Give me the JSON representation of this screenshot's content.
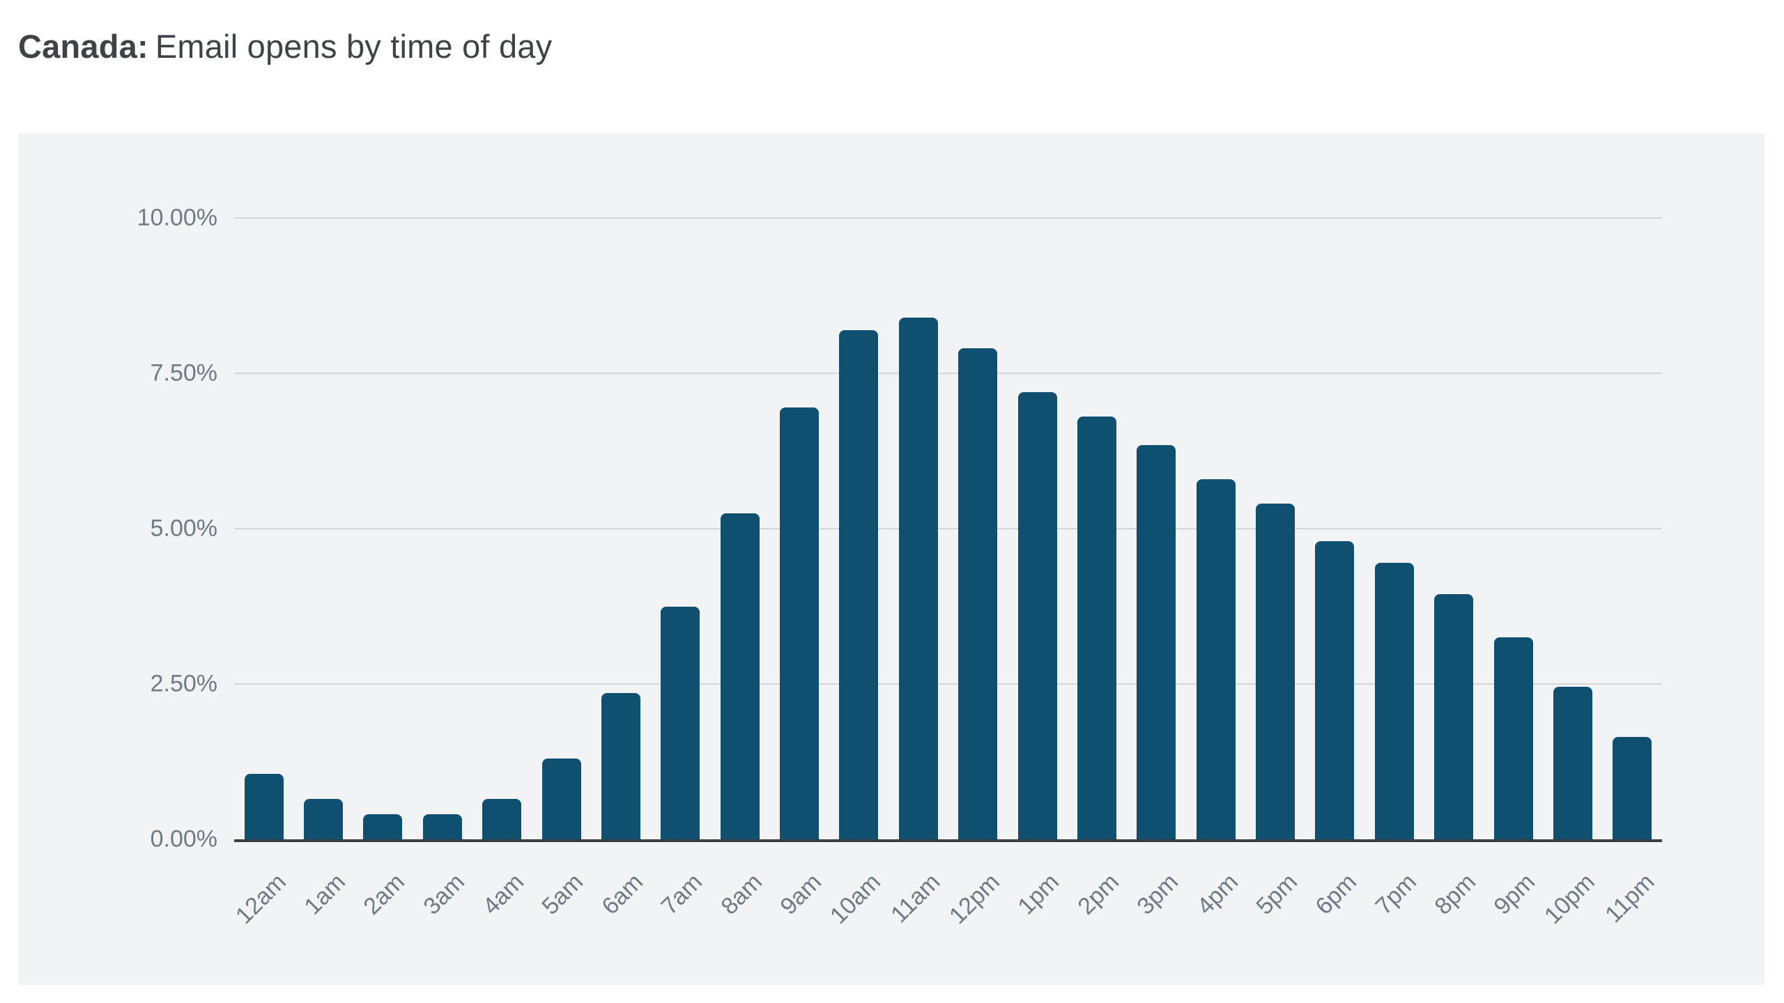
{
  "title": {
    "prefix": "Canada:",
    "rest": "Email opens by time of day"
  },
  "chart_data": {
    "type": "bar",
    "title": "Canada: Email opens by time of day",
    "categories": [
      "12am",
      "1am",
      "2am",
      "3am",
      "4am",
      "5am",
      "6am",
      "7am",
      "8am",
      "9am",
      "10am",
      "11am",
      "12pm",
      "1pm",
      "2pm",
      "3pm",
      "4pm",
      "5pm",
      "6pm",
      "7pm",
      "8pm",
      "9pm",
      "10pm",
      "11pm"
    ],
    "values": [
      1.05,
      0.65,
      0.4,
      0.4,
      0.65,
      1.3,
      2.35,
      3.75,
      5.25,
      6.95,
      8.2,
      8.4,
      7.9,
      7.2,
      6.8,
      6.35,
      5.8,
      5.4,
      4.8,
      4.45,
      3.95,
      3.25,
      2.45,
      1.65
    ],
    "value_unit": "%",
    "xlabel": "",
    "ylabel": "",
    "ylim": [
      0,
      10
    ],
    "ytick_labels": [
      "0.00%",
      "2.50%",
      "5.00%",
      "7.50%",
      "10.00%"
    ],
    "ytick_values": [
      0,
      2.5,
      5,
      7.5,
      10
    ],
    "grid": true,
    "legend": false,
    "colors": {
      "bar": "#0f4f70",
      "panel_background": "#f1f3f5",
      "gridline": "#d4d6d9",
      "axis_line": "#3a3e41",
      "axis_label": "#6e7a86",
      "title_text": "#3f4347"
    }
  }
}
